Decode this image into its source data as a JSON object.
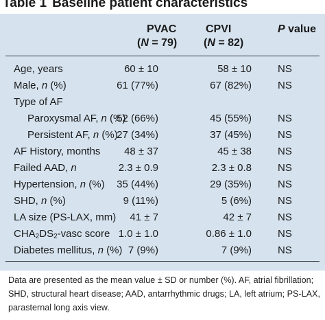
{
  "table": {
    "label": "Table 1",
    "title": "Baseline patient characteristics",
    "columns": {
      "pvac": {
        "name": "PVAC",
        "n": "(N = 79)"
      },
      "cpvi": {
        "name": "CPVI",
        "n": "(N = 82)"
      },
      "p": {
        "name": "P value"
      }
    },
    "rows": [
      {
        "label": "Age, years",
        "pvac": "60 ± 10",
        "cpvi": "58 ± 10",
        "p": "NS"
      },
      {
        "label": "Male, n (%)",
        "pvac": "61 (77%)",
        "cpvi": "67 (82%)",
        "p": "NS"
      },
      {
        "label": "Type of AF",
        "pvac": "",
        "cpvi": "",
        "p": ""
      },
      {
        "label": "Paroxysmal AF, n (%)",
        "pvac": "52 (66%)",
        "cpvi": "45 (55%)",
        "p": "NS"
      },
      {
        "label": "Persistent AF, n (%)",
        "pvac": "27 (34%)",
        "cpvi": "37 (45%)",
        "p": "NS"
      },
      {
        "label": "AF History, months",
        "pvac": "48 ± 37",
        "cpvi": "45 ± 38",
        "p": "NS"
      },
      {
        "label": "Failed AAD, n",
        "pvac": "2.3 ± 0.9",
        "cpvi": "2.3 ± 0.8",
        "p": "NS"
      },
      {
        "label": "Hypertension, n (%)",
        "pvac": "35 (44%)",
        "cpvi": "29 (35%)",
        "p": "NS"
      },
      {
        "label": "SHD, n (%)",
        "pvac": "9 (11%)",
        "cpvi": "5 (6%)",
        "p": "NS"
      },
      {
        "label": "LA size (PS-LAX, mm)",
        "pvac": "41 ± 7",
        "cpvi": "42 ± 7",
        "p": "NS"
      },
      {
        "label": "CHA2DS2-vasc score",
        "pvac": "1.0 ± 1.0",
        "cpvi": "0.86 ± 1.0",
        "p": "NS"
      },
      {
        "label": "Diabetes mellitus, n (%)",
        "pvac": "7 (9%)",
        "cpvi": "7 (9%)",
        "p": "NS"
      }
    ],
    "footnote": "Data are presented as the mean value ± SD or number (%). AF, atrial fibrillation; SHD, structural heart disease; AAD, antarrhythmic drugs; LA, left atrium; PS-LAX, parasternal long axis view."
  }
}
